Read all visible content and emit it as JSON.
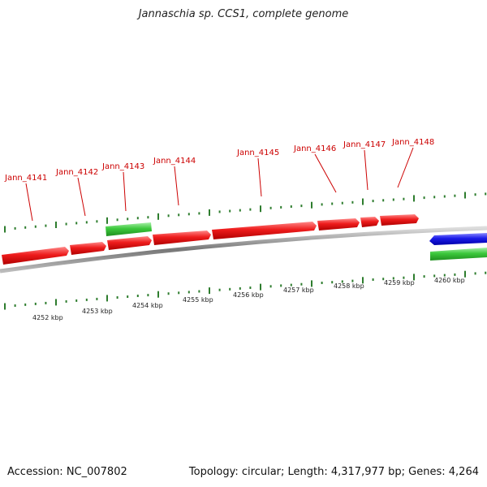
{
  "title": "Jannaschia sp. CCS1, complete genome",
  "footer": {
    "accession": "Accession: NC_007802",
    "summary": "Topology: circular; Length: 4,317,977 bp; Genes: 4,264"
  },
  "colors": {
    "forward_gene": "#e81818",
    "reverse_gene": "#1a1ae8",
    "other_gene": "#3cc83c",
    "backbone": "#888888",
    "tick": "#2e7d2e",
    "label": "#cc0000"
  },
  "genes": [
    {
      "name": "Jann_4141",
      "color": "forward_gene"
    },
    {
      "name": "Jann_4142",
      "color": "forward_gene"
    },
    {
      "name": "Jann_4143",
      "color": "forward_gene"
    },
    {
      "name": "Jann_4144",
      "color": "forward_gene"
    },
    {
      "name": "Jann_4145",
      "color": "forward_gene"
    },
    {
      "name": "Jann_4146",
      "color": "forward_gene"
    },
    {
      "name": "Jann_4147",
      "color": "forward_gene"
    },
    {
      "name": "Jann_4148",
      "color": "forward_gene"
    }
  ],
  "kbp_ticks": [
    "4252 kbp",
    "4253 kbp",
    "4254 kbp",
    "4255 kbp",
    "4256 kbp",
    "4257 kbp",
    "4258 kbp",
    "4259 kbp",
    "4260 kbp"
  ]
}
